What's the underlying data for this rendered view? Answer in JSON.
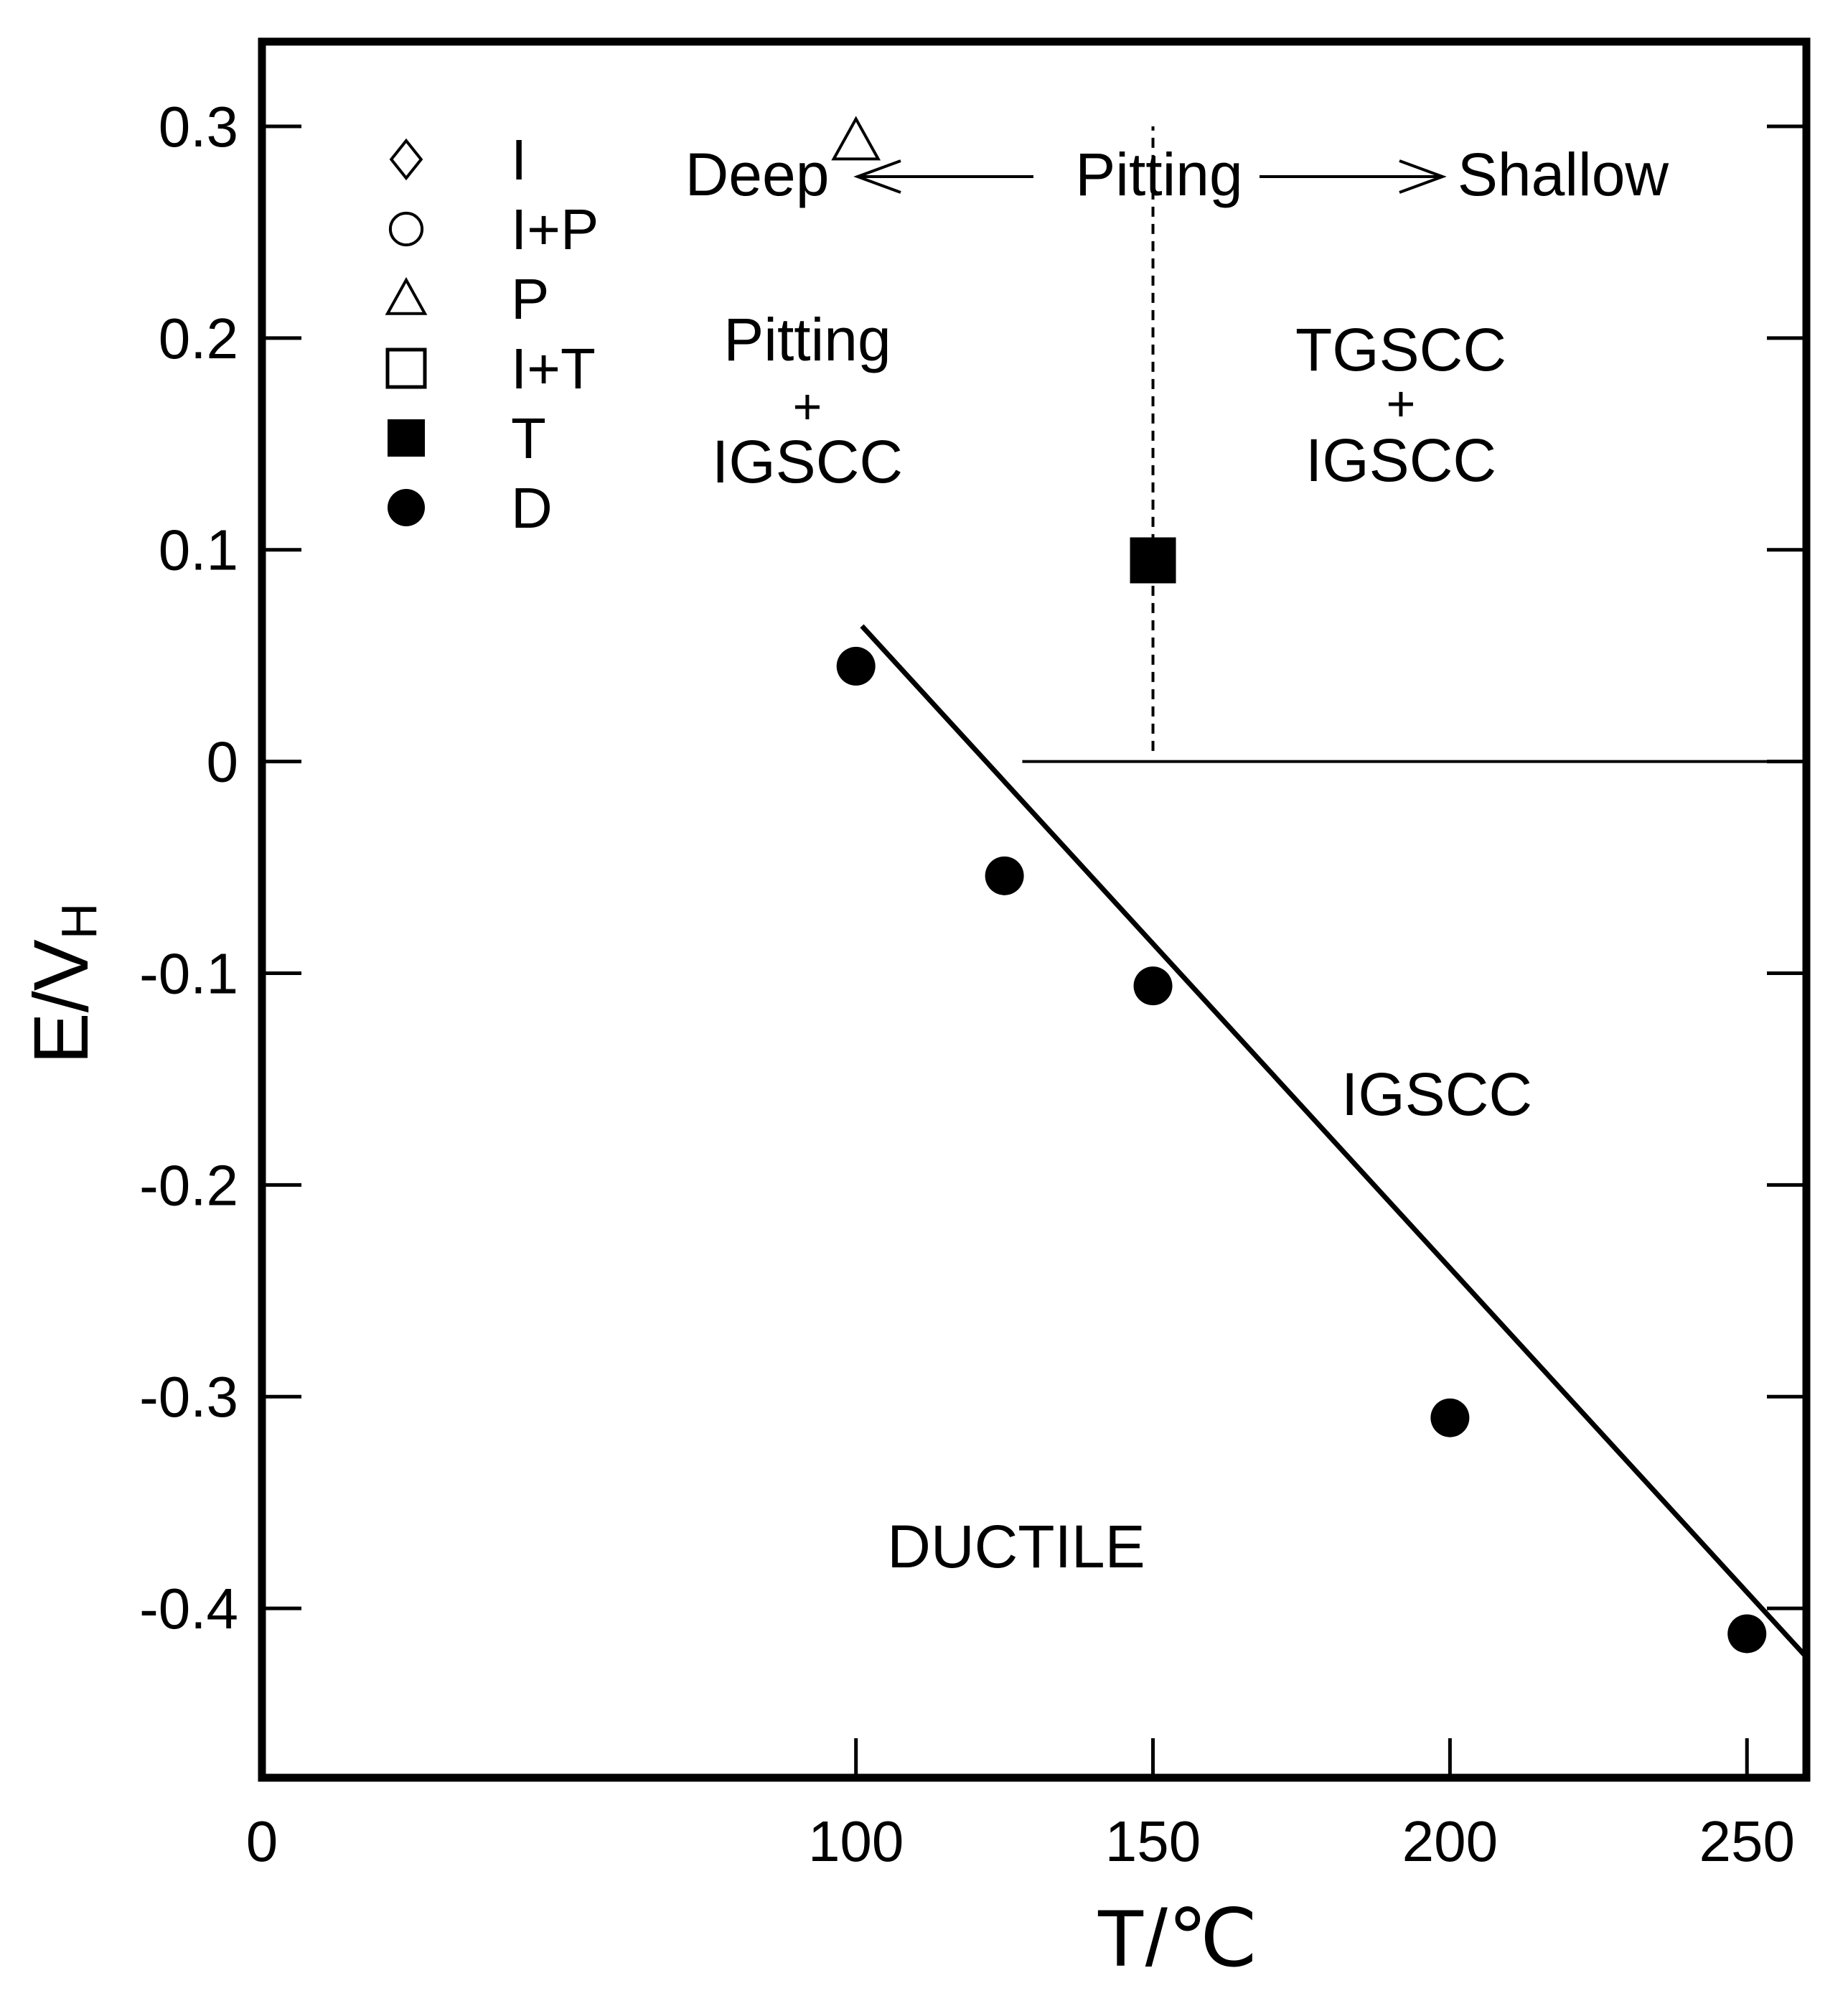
{
  "chart_data": {
    "type": "scatter",
    "title": "",
    "xlabel": "T/℃",
    "ylabel_main": "E/V",
    "ylabel_sub": "H",
    "xlim": [
      0,
      260
    ],
    "ylim": [
      -0.48,
      0.34
    ],
    "x_ticks": [
      0,
      100,
      150,
      200,
      250
    ],
    "x_tick_labels": [
      "0",
      "100",
      "150",
      "200",
      "250"
    ],
    "y_ticks": [
      0.3,
      0.2,
      0.1,
      0,
      -0.1,
      -0.2,
      -0.3,
      -0.4
    ],
    "y_tick_labels": [
      "0.3",
      "0.2",
      "0.1",
      "0",
      "-0.1",
      "-0.2",
      "-0.3",
      "-0.4"
    ],
    "legend": [
      {
        "symbol": "diamond-open",
        "label": "I"
      },
      {
        "symbol": "circle-open",
        "label": "I+P"
      },
      {
        "symbol": "triangle-open",
        "label": "P"
      },
      {
        "symbol": "square-open",
        "label": "I+T"
      },
      {
        "symbol": "square-filled",
        "label": "T"
      },
      {
        "symbol": "circle-filled",
        "label": "D"
      }
    ],
    "series": [
      {
        "name": "D",
        "symbol": "circle-filled",
        "points": [
          [
            100,
            0.045
          ],
          [
            125,
            -0.054
          ],
          [
            150,
            -0.106
          ],
          [
            200,
            -0.31
          ],
          [
            250,
            -0.412
          ]
        ]
      },
      {
        "name": "T",
        "symbol": "square-filled",
        "points": [
          [
            150,
            0.095
          ]
        ]
      },
      {
        "name": "P",
        "symbol": "triangle-open",
        "points": [
          [
            100,
            0.293
          ]
        ]
      }
    ],
    "fit_line": {
      "x": [
        101,
        260
      ],
      "y": [
        0.064,
        -0.423
      ]
    },
    "boundaries": [
      {
        "style": "solid",
        "x": [
          128,
          260
        ],
        "y": [
          0,
          0
        ]
      },
      {
        "style": "dashed",
        "x": [
          150,
          150
        ],
        "y": [
          0.005,
          0.3
        ]
      }
    ],
    "annotations": {
      "deep": "Deep",
      "pitting": "Pitting",
      "shallow": "Shallow",
      "region_pitting_igscc": [
        "Pitting",
        "+",
        "IGSCC"
      ],
      "region_tgscc_igscc": [
        "TGSCC",
        "+",
        "IGSCC"
      ],
      "region_igscc": "IGSCC",
      "region_ductile": "DUCTILE"
    }
  }
}
